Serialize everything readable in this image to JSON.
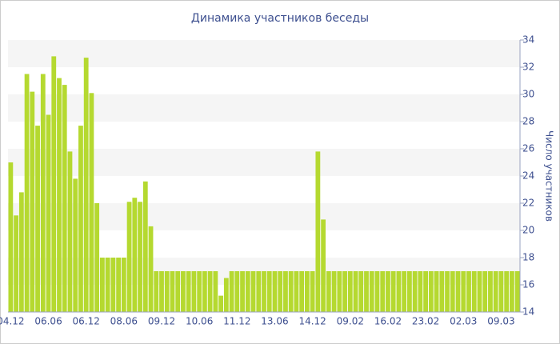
{
  "chart_data": {
    "type": "bar",
    "title": "Динамика участников беседы",
    "y_label": "Число участников",
    "categories": [
      "04.12",
      null,
      null,
      null,
      null,
      null,
      null,
      "06.06",
      null,
      null,
      null,
      null,
      null,
      null,
      "06.12",
      null,
      null,
      null,
      null,
      null,
      null,
      "08.06",
      null,
      null,
      null,
      null,
      null,
      null,
      "09.12",
      null,
      null,
      null,
      null,
      null,
      null,
      "10.06",
      null,
      null,
      null,
      null,
      null,
      null,
      "11.12",
      null,
      null,
      null,
      null,
      null,
      null,
      "13.06",
      null,
      null,
      null,
      null,
      null,
      null,
      "14.12",
      null,
      null,
      null,
      null,
      null,
      null,
      "09.02",
      null,
      null,
      null,
      null,
      null,
      null,
      "16.02",
      null,
      null,
      null,
      null,
      null,
      null,
      "23.02",
      null,
      null,
      null,
      null,
      null,
      null,
      "02.03",
      null,
      null,
      null,
      null,
      null,
      null,
      "09.03",
      null,
      null,
      null
    ],
    "values": [
      25.0,
      21.1,
      22.8,
      31.5,
      30.2,
      27.7,
      31.5,
      28.5,
      32.8,
      31.2,
      30.7,
      25.8,
      23.8,
      27.7,
      32.7,
      30.1,
      22.0,
      18,
      18,
      18,
      18,
      18,
      22.1,
      22.4,
      22.1,
      23.6,
      20.3,
      17,
      17,
      17,
      17,
      17,
      17,
      17,
      17,
      17,
      17,
      17,
      17,
      15.2,
      16.5,
      17,
      17,
      17,
      17,
      17,
      17,
      17,
      17,
      17,
      17,
      17,
      17,
      17,
      17,
      17,
      17,
      25.8,
      20.8,
      17,
      17,
      17,
      17,
      17,
      17,
      17,
      17,
      17,
      17,
      17,
      17,
      17,
      17,
      17,
      17,
      17,
      17,
      17,
      17,
      17,
      17,
      17,
      17,
      17,
      17,
      17,
      17,
      17,
      17,
      17,
      17,
      17,
      17,
      17,
      17
    ],
    "color": "#b5d930",
    "ylim": [
      14,
      34
    ],
    "yticks": [
      14,
      16,
      18,
      20,
      22,
      24,
      26,
      28,
      30,
      32,
      34
    ],
    "grid": true
  }
}
